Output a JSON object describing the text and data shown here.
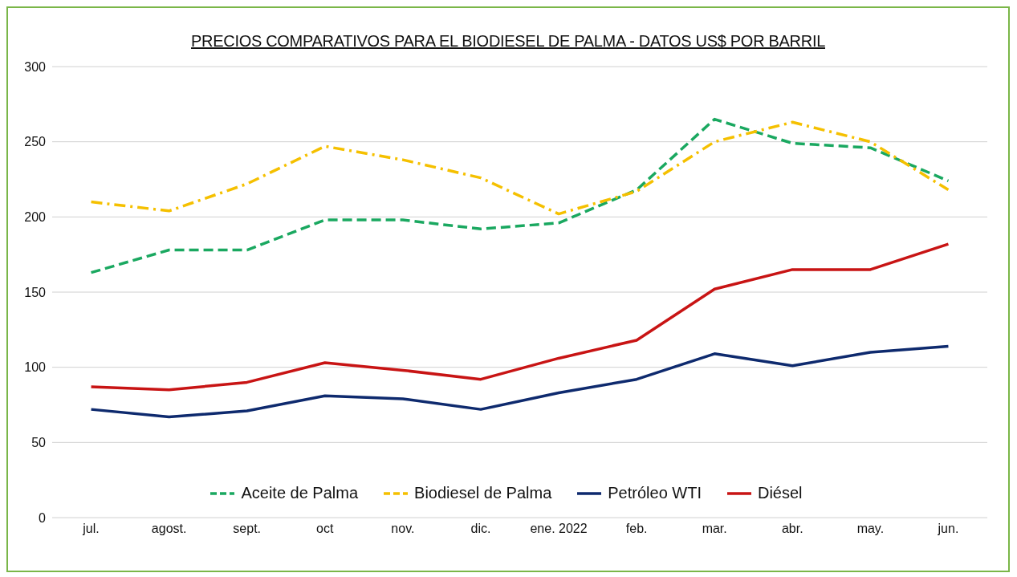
{
  "chart_data": {
    "type": "line",
    "title": "PRECIOS COMPARATIVOS PARA EL BIODIESEL DE PALMA - DATOS US$ POR BARRIL",
    "categories": [
      "jul.",
      "agost.",
      "sept.",
      "oct",
      "nov.",
      "dic.",
      "ene. 2022",
      "feb.",
      "mar.",
      "abr.",
      "may.",
      "jun."
    ],
    "series": [
      {
        "name": "Aceite de Palma",
        "color": "#1aa860",
        "line_style": "dashed",
        "values": [
          163,
          178,
          178,
          198,
          198,
          192,
          196,
          218,
          265,
          249,
          246,
          224
        ]
      },
      {
        "name": "Biodiesel de Palma",
        "color": "#f5c000",
        "line_style": "dashed",
        "values": [
          210,
          204,
          222,
          247,
          238,
          226,
          202,
          217,
          250,
          263,
          250,
          218
        ]
      },
      {
        "name": "Petróleo WTI",
        "color": "#0e2a6e",
        "line_style": "solid",
        "values": [
          72,
          67,
          71,
          81,
          79,
          72,
          83,
          92,
          109,
          101,
          110,
          114
        ]
      },
      {
        "name": "Diésel",
        "color": "#c81414",
        "line_style": "solid",
        "values": [
          87,
          85,
          90,
          103,
          98,
          92,
          106,
          118,
          152,
          165,
          165,
          182
        ]
      }
    ],
    "ylim": [
      0,
      300
    ],
    "yticks": [
      0,
      50,
      100,
      150,
      200,
      250,
      300
    ],
    "grid": "y",
    "legend": "bottom",
    "marker": "none"
  }
}
